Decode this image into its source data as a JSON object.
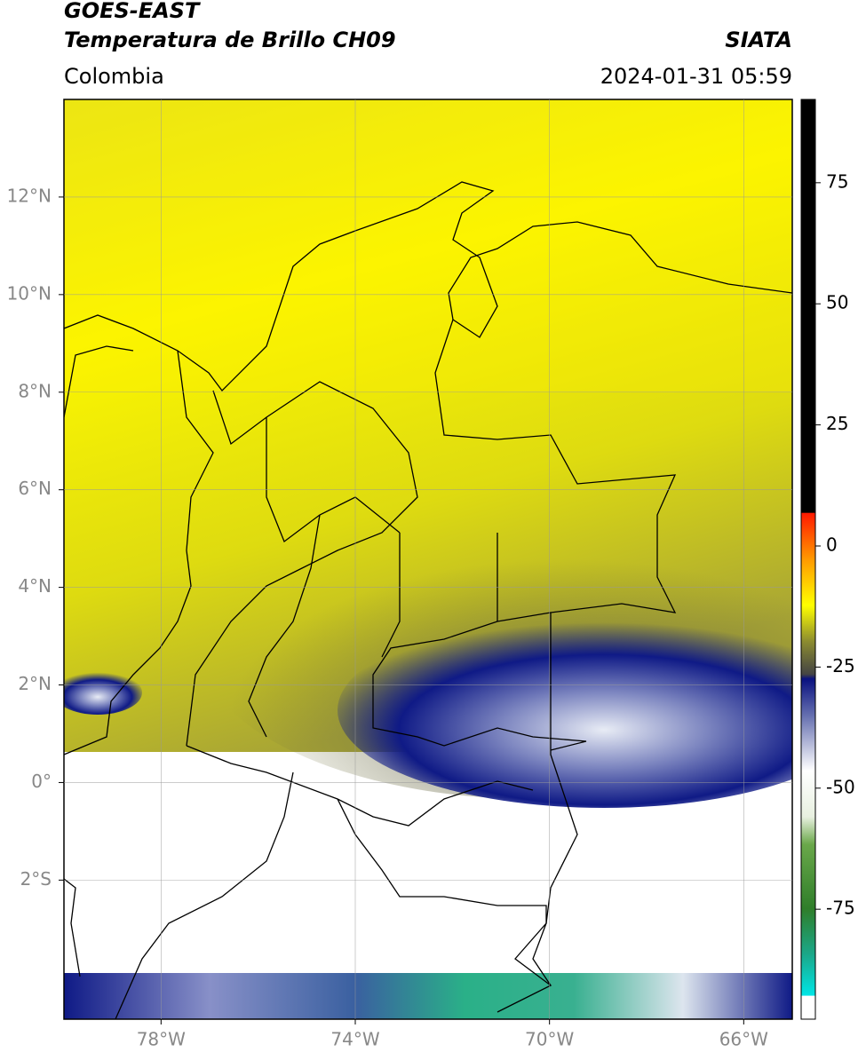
{
  "header": {
    "title": "GOES-EAST",
    "subtitle": "Temperatura de Brillo CH09",
    "source": "SIATA",
    "region": "Colombia",
    "datetime": "2024-01-31 05:59"
  },
  "map": {
    "xlim": [
      -80,
      -65
    ],
    "ylim": [
      -4.85,
      14
    ],
    "xticks": [
      {
        "value": -78,
        "label": "78°W"
      },
      {
        "value": -74,
        "label": "74°W"
      },
      {
        "value": -70,
        "label": "70°W"
      },
      {
        "value": -66,
        "label": "66°W"
      }
    ],
    "yticks": [
      {
        "value": 12,
        "label": "12°N"
      },
      {
        "value": 10,
        "label": "10°N"
      },
      {
        "value": 8,
        "label": "8°N"
      },
      {
        "value": 6,
        "label": "6°N"
      },
      {
        "value": 4,
        "label": "4°N"
      },
      {
        "value": 2,
        "label": "2°N"
      },
      {
        "value": 0,
        "label": "0°"
      },
      {
        "value": -2,
        "label": "2°S"
      }
    ]
  },
  "colorbar": {
    "lim": [
      -97.7,
      92.2
    ],
    "ticks": [
      75,
      50,
      25,
      0,
      -25,
      -50,
      -75
    ]
  }
}
